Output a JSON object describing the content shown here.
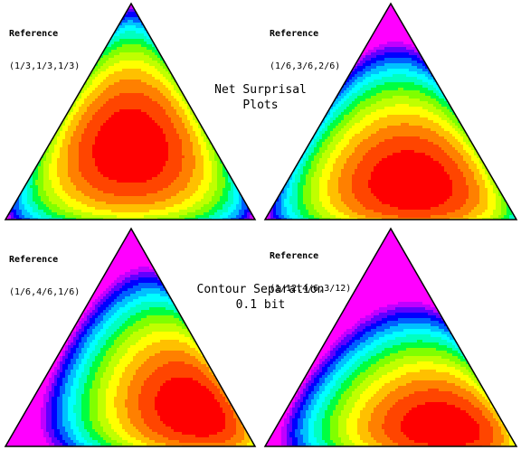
{
  "header_caption": {
    "line1": "Net Surprisal",
    "line2": "Plots"
  },
  "middle_caption": {
    "line1": "Contour Separation",
    "line2": "0.1 bit"
  },
  "plots": [
    {
      "reference_label": "Reference",
      "distribution": "(1/3,1/3,1/3)",
      "weights": [
        0.3333,
        0.3333,
        0.3333
      ]
    },
    {
      "reference_label": "Reference",
      "distribution": "(1/6,3/6,2/6)",
      "weights": [
        0.1667,
        0.5,
        0.3333
      ]
    },
    {
      "reference_label": "Reference",
      "distribution": "(1/6,4/6,1/6)",
      "weights": [
        0.1667,
        0.6667,
        0.1667
      ]
    },
    {
      "reference_label": "Reference",
      "distribution": "(1/12,4/6,3/12)",
      "weights": [
        0.0833,
        0.6667,
        0.25
      ]
    }
  ],
  "contour_separation_bits": 0.1,
  "palette": [
    "#ff0000",
    "#ff4500",
    "#ff8000",
    "#ffc000",
    "#ffff00",
    "#c0ff00",
    "#80ff00",
    "#00ff40",
    "#00ffc0",
    "#00ffff",
    "#00c0ff",
    "#0060ff",
    "#0000ff",
    "#6000ff",
    "#c000ff",
    "#ff00ff"
  ],
  "contour_line_color": "#000000"
}
